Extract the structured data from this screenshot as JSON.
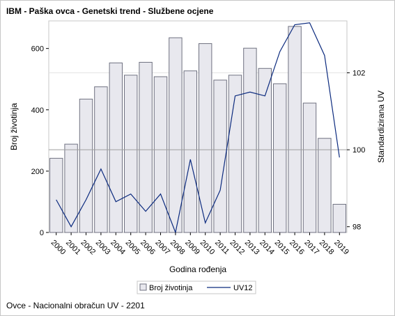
{
  "title": "IBM - Paška ovca - Genetski trend - Službene ocjene",
  "footnote": "Ovce - Nacionalni obračun UV - 2201",
  "colors": {
    "bar_fill": "#e8e8ee",
    "bar_stroke": "#6f7180",
    "line": "#0b2a7e",
    "frame": "#c7c7c7",
    "ref_line": "#9e9e9e"
  },
  "chart_data": {
    "type": "bar",
    "categories": [
      "2000",
      "2001",
      "2002",
      "2003",
      "2004",
      "2005",
      "2006",
      "2007",
      "2008",
      "2009",
      "2010",
      "2011",
      "2012",
      "2013",
      "2014",
      "2015",
      "2016",
      "2017",
      "2018",
      "2019"
    ],
    "series": [
      {
        "name": "Broj životinja",
        "type": "bar",
        "axis": "left",
        "values": [
          242,
          288,
          435,
          475,
          553,
          513,
          555,
          508,
          635,
          527,
          616,
          497,
          513,
          601,
          535,
          485,
          672,
          422,
          307,
          92
        ]
      },
      {
        "name": "UV12",
        "type": "line",
        "axis": "right",
        "values": [
          98.7,
          98.0,
          98.7,
          99.5,
          98.65,
          98.85,
          98.4,
          98.85,
          97.85,
          99.75,
          98.1,
          98.95,
          101.4,
          101.5,
          101.4,
          102.55,
          103.25,
          103.3,
          102.45,
          99.8
        ]
      }
    ],
    "xlabel": "Godina rođenja",
    "ylabel": "Broj životinja",
    "y2label": "Standardizirana UV",
    "ylim": [
      0,
      690
    ],
    "y2lim": [
      97.85,
      103.35
    ],
    "yticks": [
      0,
      200,
      400,
      600
    ],
    "y2ticks": [
      98,
      100,
      102
    ],
    "ref_lines_y2": [
      100
    ],
    "legend": [
      "Broj životinja",
      "UV12"
    ],
    "legend_position": "bottom",
    "grid": false
  }
}
